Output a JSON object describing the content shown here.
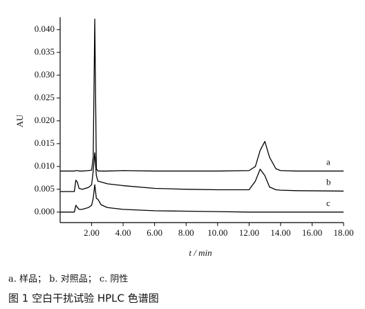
{
  "chart_data": {
    "type": "line",
    "ylabel": "AU",
    "xlabel": "t / min",
    "xlim": [
      0,
      18
    ],
    "ylim": [
      -0.0023,
      0.0427
    ],
    "xticks": [
      {
        "value": 2,
        "label": "2.00"
      },
      {
        "value": 4,
        "label": "4.00"
      },
      {
        "value": 6,
        "label": "6.00"
      },
      {
        "value": 8,
        "label": "8.00"
      },
      {
        "value": 10,
        "label": "10.00"
      },
      {
        "value": 12,
        "label": "12.00"
      },
      {
        "value": 14,
        "label": "14.00"
      },
      {
        "value": 16,
        "label": "16.00"
      },
      {
        "value": 18,
        "label": "18.00"
      }
    ],
    "yticks": [
      {
        "value": 0,
        "label": "0.000"
      },
      {
        "value": 0.005,
        "label": "0.005"
      },
      {
        "value": 0.01,
        "label": "0.010"
      },
      {
        "value": 0.015,
        "label": "0.015"
      },
      {
        "value": 0.02,
        "label": "0.020"
      },
      {
        "value": 0.025,
        "label": "0.025"
      },
      {
        "value": 0.03,
        "label": "0.030"
      },
      {
        "value": 0.035,
        "label": "0.035"
      },
      {
        "value": 0.04,
        "label": "0.040"
      }
    ],
    "x": [
      0,
      0.9,
      1.0,
      1.1,
      1.2,
      1.4,
      1.8,
      2.0,
      2.1,
      2.2,
      2.3,
      2.4,
      2.6,
      3,
      4,
      6,
      8,
      10,
      12,
      12.4,
      12.7,
      13.0,
      13.3,
      13.7,
      14,
      15,
      18
    ],
    "series": [
      {
        "name": "a",
        "color": "#000000",
        "values": [
          0.009,
          0.009,
          0.0091,
          0.0091,
          0.009,
          0.009,
          0.0091,
          0.0092,
          0.012,
          0.0423,
          0.0095,
          0.009,
          0.009,
          0.009,
          0.0091,
          0.009,
          0.009,
          0.009,
          0.0091,
          0.01,
          0.0135,
          0.0155,
          0.012,
          0.0095,
          0.0091,
          0.009,
          0.009
        ]
      },
      {
        "name": "b",
        "color": "#000000",
        "values": [
          0.0045,
          0.0045,
          0.007,
          0.0065,
          0.0052,
          0.005,
          0.0054,
          0.006,
          0.009,
          0.013,
          0.008,
          0.0068,
          0.0066,
          0.0062,
          0.0058,
          0.0052,
          0.005,
          0.0049,
          0.0049,
          0.0068,
          0.0094,
          0.008,
          0.0055,
          0.0049,
          0.0048,
          0.0047,
          0.0046
        ]
      },
      {
        "name": "c",
        "color": "#000000",
        "values": [
          0,
          0,
          0.0015,
          0.001,
          0.0006,
          0.0006,
          0.001,
          0.0015,
          0.003,
          0.006,
          0.003,
          0.0028,
          0.0016,
          0.001,
          0.0006,
          0.0003,
          0.0002,
          0.0001,
          0,
          0,
          0,
          0,
          0,
          0,
          0,
          0,
          0
        ]
      }
    ],
    "note": "a. 样品；  b. 对照品；  c. 阴性",
    "caption": "图 1   空白干扰试验 HPLC 色谱图"
  }
}
